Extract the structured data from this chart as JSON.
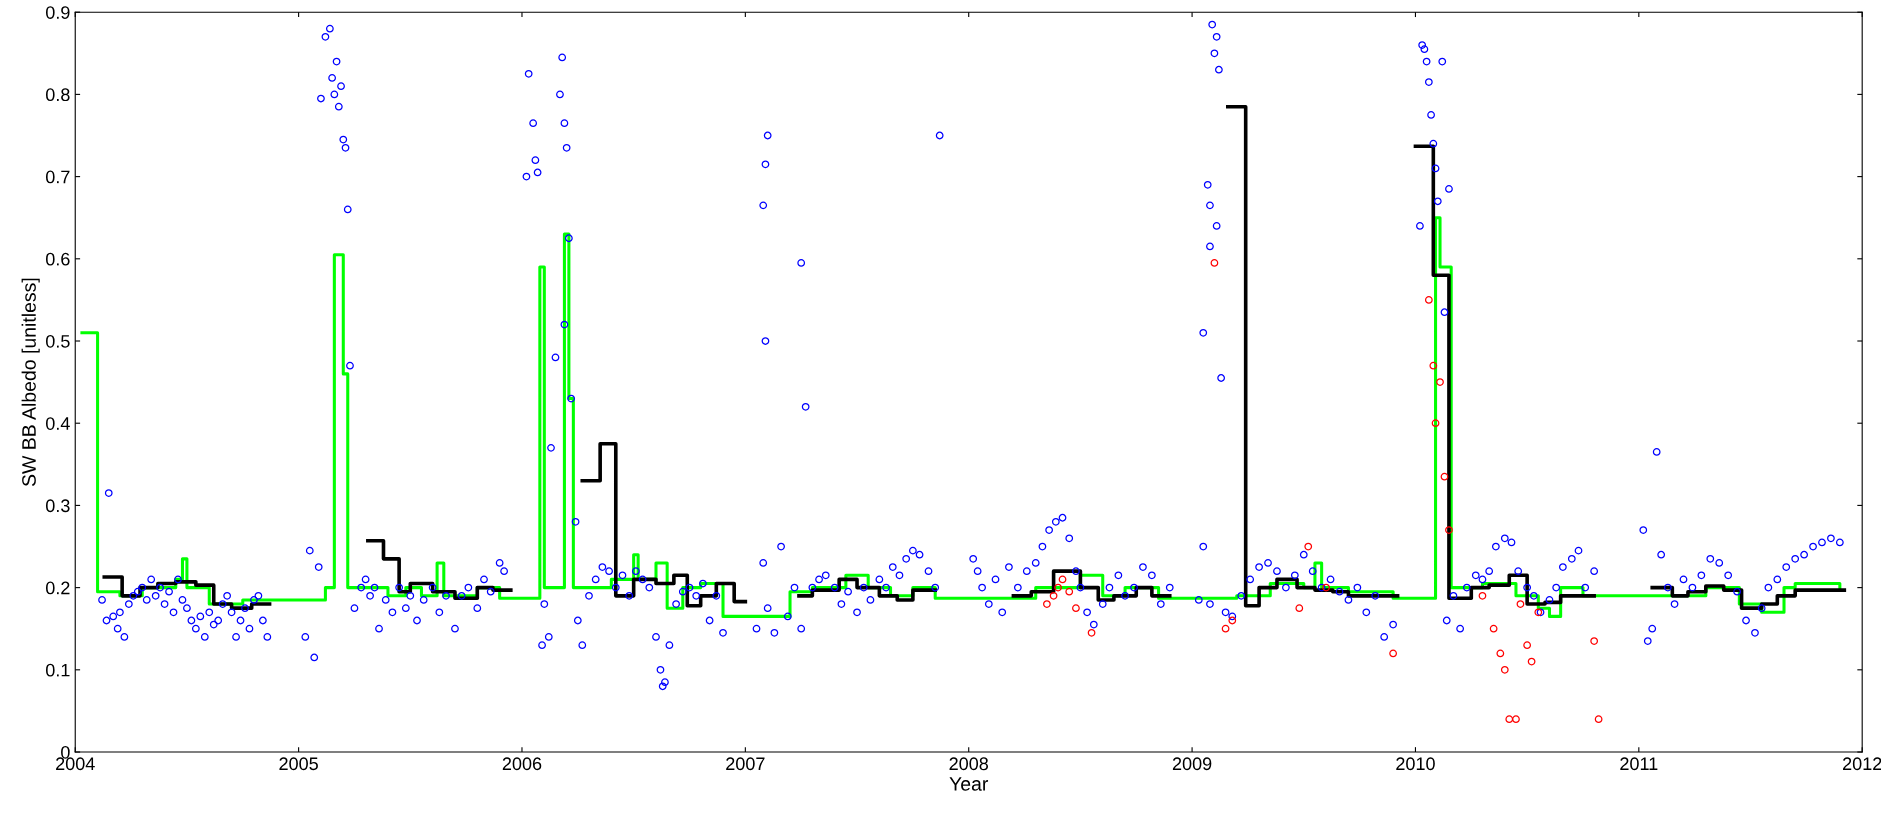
{
  "chart_data": {
    "type": "scatter",
    "xlabel": "Year",
    "ylabel": "SW BB Albedo [unitless]",
    "xlim": [
      2004,
      2012
    ],
    "ylim": [
      0,
      0.9
    ],
    "xticks": [
      2004,
      2005,
      2006,
      2007,
      2008,
      2009,
      2010,
      2011,
      2012
    ],
    "yticks": [
      0,
      0.1,
      0.2,
      0.3,
      0.4,
      0.5,
      0.6,
      0.7,
      0.8,
      0.9
    ],
    "grid": false,
    "legend": false,
    "series": [
      {
        "type": "step",
        "color": "#00ff00",
        "marker": "none",
        "line_style": "solid",
        "x": [
          2004.03,
          2004.1,
          2004.2,
          2004.3,
          2004.45,
          2004.48,
          2004.5,
          2004.6,
          2004.75,
          2005.12,
          2005.16,
          2005.2,
          2005.22,
          2005.4,
          2005.48,
          2005.55,
          2005.62,
          2005.65,
          2005.8,
          2005.9,
          2006.08,
          2006.1,
          2006.19,
          2006.21,
          2006.23,
          2006.4,
          2006.5,
          2006.52,
          2006.6,
          2006.65,
          2006.72,
          2006.8,
          2006.9,
          2007.2,
          2007.3,
          2007.45,
          2007.55,
          2007.65,
          2007.75,
          2007.85,
          2008.3,
          2008.5,
          2008.6,
          2008.7,
          2008.85,
          2009.2,
          2009.35,
          2009.5,
          2009.55,
          2009.58,
          2009.7,
          2009.9,
          2010.09,
          2010.11,
          2010.16,
          2010.3,
          2010.45,
          2010.55,
          2010.6,
          2010.65,
          2010.75,
          2011.3,
          2011.45,
          2011.55,
          2011.65,
          2011.7,
          2011.9
        ],
        "values": [
          0.51,
          0.195,
          0.19,
          0.2,
          0.21,
          0.235,
          0.2,
          0.18,
          0.185,
          0.2,
          0.605,
          0.46,
          0.2,
          0.19,
          0.2,
          0.19,
          0.23,
          0.19,
          0.2,
          0.187,
          0.59,
          0.2,
          0.63,
          0.43,
          0.2,
          0.21,
          0.24,
          0.21,
          0.23,
          0.175,
          0.2,
          0.205,
          0.165,
          0.195,
          0.2,
          0.215,
          0.2,
          0.19,
          0.2,
          0.187,
          0.2,
          0.215,
          0.19,
          0.2,
          0.187,
          0.19,
          0.205,
          0.2,
          0.23,
          0.2,
          0.195,
          0.187,
          0.65,
          0.59,
          0.2,
          0.205,
          0.19,
          0.175,
          0.165,
          0.2,
          0.19,
          0.2,
          0.18,
          0.17,
          0.2,
          0.205,
          0.2
        ]
      },
      {
        "color": "#0000ff",
        "marker": "circle",
        "x": [
          2004.12,
          2004.14,
          2004.15,
          2004.17,
          2004.19,
          2004.2,
          2004.22,
          2004.24,
          2004.26,
          2004.28,
          2004.3,
          2004.32,
          2004.34,
          2004.36,
          2004.38,
          2004.4,
          2004.42,
          2004.44,
          2004.46,
          2004.48,
          2004.5,
          2004.52,
          2004.54,
          2004.56,
          2004.58,
          2004.6,
          2004.62,
          2004.64,
          2004.66,
          2004.68,
          2004.7,
          2004.72,
          2004.74,
          2004.76,
          2004.78,
          2004.8,
          2004.82,
          2004.84,
          2004.86,
          2005.1,
          2005.12,
          2005.14,
          2005.15,
          2005.16,
          2005.17,
          2005.18,
          2005.19,
          2005.2,
          2005.21,
          2005.22,
          2005.23,
          2005.03,
          2005.05,
          2005.07,
          2005.09,
          2005.25,
          2005.28,
          2005.3,
          2005.32,
          2005.34,
          2005.36,
          2005.39,
          2005.42,
          2005.45,
          2005.48,
          2005.5,
          2005.53,
          2005.56,
          2005.6,
          2005.63,
          2005.66,
          2005.7,
          2005.73,
          2005.76,
          2005.8,
          2005.83,
          2005.86,
          2005.9,
          2005.92,
          2006.02,
          2006.03,
          2006.05,
          2006.06,
          2006.07,
          2006.17,
          2006.18,
          2006.19,
          2006.2,
          2006.21,
          2006.15,
          2006.19,
          2006.22,
          2006.24,
          2006.13,
          2006.09,
          2006.1,
          2006.12,
          2006.25,
          2006.27,
          2006.3,
          2006.33,
          2006.36,
          2006.39,
          2006.42,
          2006.45,
          2006.48,
          2006.51,
          2006.54,
          2006.57,
          2006.6,
          2006.62,
          2006.63,
          2006.64,
          2006.66,
          2006.69,
          2006.72,
          2006.75,
          2006.78,
          2006.81,
          2006.84,
          2006.87,
          2006.9,
          2007.1,
          2007.09,
          2007.08,
          2007.09,
          2007.25,
          2007.27,
          2007.87,
          2007.05,
          2007.08,
          2007.1,
          2007.13,
          2007.16,
          2007.19,
          2007.22,
          2007.25,
          2007.3,
          2007.33,
          2007.36,
          2007.4,
          2007.43,
          2007.46,
          2007.5,
          2007.53,
          2007.56,
          2007.6,
          2007.63,
          2007.66,
          2007.69,
          2007.72,
          2007.75,
          2007.78,
          2007.82,
          2007.85,
          2008.02,
          2008.04,
          2008.06,
          2008.09,
          2008.12,
          2008.15,
          2008.18,
          2008.22,
          2008.26,
          2008.3,
          2008.33,
          2008.36,
          2008.39,
          2008.42,
          2008.45,
          2008.48,
          2008.5,
          2008.53,
          2008.56,
          2008.6,
          2008.63,
          2008.67,
          2008.7,
          2008.74,
          2008.78,
          2008.82,
          2008.86,
          2008.9,
          2009.05,
          2009.07,
          2009.08,
          2009.09,
          2009.1,
          2009.11,
          2009.12,
          2009.13,
          2009.08,
          2009.11,
          2009.03,
          2009.05,
          2009.08,
          2009.15,
          2009.18,
          2009.22,
          2009.26,
          2009.3,
          2009.34,
          2009.38,
          2009.42,
          2009.46,
          2009.5,
          2009.54,
          2009.58,
          2009.62,
          2009.66,
          2009.7,
          2009.74,
          2009.78,
          2009.82,
          2009.86,
          2009.9,
          2010.02,
          2010.03,
          2010.04,
          2010.05,
          2010.06,
          2010.07,
          2010.08,
          2010.09,
          2010.1,
          2010.12,
          2010.15,
          2010.13,
          2010.14,
          2010.17,
          2010.2,
          2010.23,
          2010.27,
          2010.3,
          2010.33,
          2010.36,
          2010.4,
          2010.43,
          2010.46,
          2010.5,
          2010.53,
          2010.56,
          2010.6,
          2010.63,
          2010.66,
          2010.7,
          2010.73,
          2010.76,
          2010.8,
          2011.02,
          2011.04,
          2011.06,
          2011.08,
          2011.1,
          2011.13,
          2011.16,
          2011.2,
          2011.24,
          2011.28,
          2011.32,
          2011.36,
          2011.4,
          2011.44,
          2011.48,
          2011.52,
          2011.55,
          2011.58,
          2011.62,
          2011.66,
          2011.7,
          2011.74,
          2011.78,
          2011.82,
          2011.86,
          2011.9
        ],
        "values": [
          0.185,
          0.16,
          0.315,
          0.165,
          0.15,
          0.17,
          0.14,
          0.18,
          0.19,
          0.195,
          0.2,
          0.185,
          0.21,
          0.19,
          0.2,
          0.18,
          0.195,
          0.17,
          0.21,
          0.185,
          0.175,
          0.16,
          0.15,
          0.165,
          0.14,
          0.17,
          0.155,
          0.16,
          0.18,
          0.19,
          0.17,
          0.14,
          0.16,
          0.175,
          0.15,
          0.185,
          0.19,
          0.16,
          0.14,
          0.795,
          0.87,
          0.88,
          0.82,
          0.8,
          0.84,
          0.785,
          0.81,
          0.745,
          0.735,
          0.66,
          0.47,
          0.14,
          0.245,
          0.115,
          0.225,
          0.175,
          0.2,
          0.21,
          0.19,
          0.2,
          0.15,
          0.185,
          0.17,
          0.2,
          0.175,
          0.19,
          0.16,
          0.185,
          0.2,
          0.17,
          0.19,
          0.15,
          0.19,
          0.2,
          0.175,
          0.21,
          0.195,
          0.23,
          0.22,
          0.7,
          0.825,
          0.765,
          0.72,
          0.705,
          0.8,
          0.845,
          0.765,
          0.735,
          0.625,
          0.48,
          0.52,
          0.43,
          0.28,
          0.37,
          0.13,
          0.18,
          0.14,
          0.16,
          0.13,
          0.19,
          0.21,
          0.225,
          0.22,
          0.2,
          0.215,
          0.19,
          0.22,
          0.21,
          0.2,
          0.14,
          0.1,
          0.08,
          0.085,
          0.13,
          0.18,
          0.195,
          0.2,
          0.19,
          0.205,
          0.16,
          0.19,
          0.145,
          0.75,
          0.715,
          0.665,
          0.5,
          0.595,
          0.42,
          0.75,
          0.15,
          0.23,
          0.175,
          0.145,
          0.25,
          0.165,
          0.2,
          0.15,
          0.2,
          0.21,
          0.215,
          0.2,
          0.18,
          0.195,
          0.17,
          0.2,
          0.185,
          0.21,
          0.2,
          0.225,
          0.215,
          0.235,
          0.245,
          0.24,
          0.22,
          0.2,
          0.235,
          0.22,
          0.2,
          0.18,
          0.21,
          0.17,
          0.225,
          0.2,
          0.22,
          0.23,
          0.25,
          0.27,
          0.28,
          0.285,
          0.26,
          0.22,
          0.2,
          0.17,
          0.155,
          0.18,
          0.2,
          0.215,
          0.19,
          0.2,
          0.225,
          0.215,
          0.18,
          0.2,
          0.51,
          0.69,
          0.665,
          0.885,
          0.85,
          0.87,
          0.83,
          0.455,
          0.615,
          0.64,
          0.185,
          0.25,
          0.18,
          0.17,
          0.165,
          0.19,
          0.21,
          0.225,
          0.23,
          0.22,
          0.2,
          0.215,
          0.24,
          0.22,
          0.2,
          0.21,
          0.195,
          0.185,
          0.2,
          0.17,
          0.19,
          0.14,
          0.155,
          0.64,
          0.86,
          0.855,
          0.84,
          0.815,
          0.775,
          0.74,
          0.71,
          0.67,
          0.84,
          0.685,
          0.535,
          0.16,
          0.19,
          0.15,
          0.2,
          0.215,
          0.21,
          0.22,
          0.25,
          0.26,
          0.255,
          0.22,
          0.2,
          0.19,
          0.17,
          0.185,
          0.2,
          0.225,
          0.235,
          0.245,
          0.2,
          0.22,
          0.27,
          0.135,
          0.15,
          0.365,
          0.24,
          0.2,
          0.18,
          0.21,
          0.2,
          0.215,
          0.235,
          0.23,
          0.215,
          0.195,
          0.16,
          0.145,
          0.175,
          0.2,
          0.21,
          0.225,
          0.235,
          0.24,
          0.25,
          0.255,
          0.26,
          0.255
        ]
      },
      {
        "color": "#ff0000",
        "marker": "circle",
        "x": [
          2008.35,
          2008.38,
          2008.4,
          2008.42,
          2008.45,
          2008.48,
          2008.55,
          2009.1,
          2009.15,
          2009.18,
          2009.48,
          2009.52,
          2009.6,
          2009.9,
          2010.06,
          2010.08,
          2010.09,
          2010.11,
          2010.13,
          2010.15,
          2010.3,
          2010.35,
          2010.38,
          2010.4,
          2010.42,
          2010.45,
          2010.47,
          2010.5,
          2010.52,
          2010.55,
          2010.8,
          2010.82
        ],
        "values": [
          0.18,
          0.19,
          0.2,
          0.21,
          0.195,
          0.175,
          0.145,
          0.595,
          0.15,
          0.16,
          0.175,
          0.25,
          0.2,
          0.12,
          0.55,
          0.47,
          0.4,
          0.45,
          0.335,
          0.27,
          0.19,
          0.15,
          0.12,
          0.1,
          0.04,
          0.04,
          0.18,
          0.13,
          0.11,
          0.17,
          0.135,
          0.04
        ]
      },
      {
        "type": "step",
        "color": "#000000",
        "marker": "none",
        "line_style": "solid",
        "x": [
          2004.13,
          2004.21,
          2004.29,
          2004.37,
          2004.45,
          2004.54,
          2004.62,
          2004.7,
          2004.79,
          2004.87,
          null,
          2005.31,
          2005.38,
          2005.45,
          2005.5,
          2005.6,
          2005.7,
          2005.8,
          2005.87,
          2005.95,
          null,
          2006.27,
          2006.35,
          2006.42,
          2006.5,
          2006.6,
          2006.68,
          2006.74,
          2006.8,
          2006.87,
          2006.95,
          2007.0,
          null,
          2007.24,
          2007.3,
          2007.42,
          2007.5,
          2007.6,
          2007.68,
          2007.75,
          2007.85,
          null,
          2008.2,
          2008.28,
          2008.38,
          2008.5,
          2008.58,
          2008.65,
          2008.75,
          2008.82,
          2008.9,
          null,
          2009.16,
          2009.24,
          2009.3,
          2009.38,
          2009.47,
          2009.55,
          2009.63,
          2009.7,
          2009.78,
          2009.92,
          null,
          2010.0,
          2010.08,
          2010.15,
          2010.25,
          2010.33,
          2010.42,
          2010.5,
          2010.58,
          2010.65,
          2010.8,
          null,
          2011.06,
          2011.15,
          2011.22,
          2011.3,
          2011.38,
          2011.46,
          2011.55,
          2011.62,
          2011.7,
          2011.92
        ],
        "values": [
          0.213,
          0.19,
          0.2,
          0.205,
          0.207,
          0.203,
          0.18,
          0.175,
          0.18,
          0.18,
          null,
          0.257,
          0.235,
          0.195,
          0.205,
          0.195,
          0.187,
          0.2,
          0.197,
          0.197,
          null,
          0.33,
          0.375,
          0.19,
          0.21,
          0.205,
          0.215,
          0.178,
          0.19,
          0.205,
          0.183,
          0.183,
          null,
          0.19,
          0.197,
          0.21,
          0.2,
          0.19,
          0.185,
          0.197,
          0.197,
          null,
          0.19,
          0.195,
          0.22,
          0.2,
          0.185,
          0.19,
          0.2,
          0.19,
          0.19,
          null,
          0.785,
          0.178,
          0.2,
          0.21,
          0.2,
          0.197,
          0.195,
          0.19,
          0.19,
          0.19,
          null,
          0.737,
          0.58,
          0.187,
          0.2,
          0.203,
          0.215,
          0.18,
          0.182,
          0.19,
          0.19,
          null,
          0.2,
          0.19,
          0.195,
          0.202,
          0.197,
          0.175,
          0.18,
          0.19,
          0.197,
          0.197
        ]
      }
    ]
  }
}
